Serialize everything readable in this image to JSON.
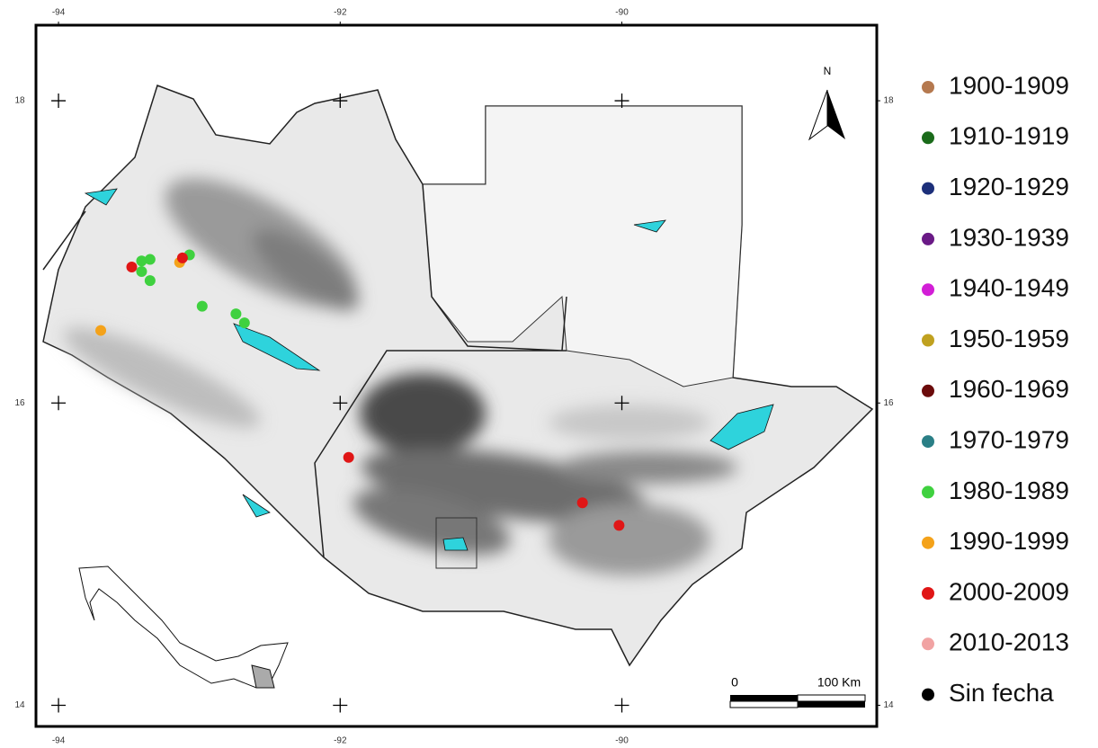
{
  "map": {
    "lon_ticks": [
      {
        "value": -94,
        "label": "-94"
      },
      {
        "value": -92,
        "label": "-92"
      },
      {
        "value": -90,
        "label": "-90"
      }
    ],
    "lat_ticks": [
      18,
      16,
      14
    ],
    "xlim": [
      -94.16,
      -88.19
    ],
    "ylim": [
      13.86,
      18.5
    ],
    "north_label": "N",
    "scale_bar": {
      "start_label": "0",
      "end_label": "100 Km"
    },
    "legend": [
      {
        "name": "1900-1909",
        "color": "#b5794f"
      },
      {
        "name": "1910-1919",
        "color": "#1a6b1a"
      },
      {
        "name": "1920-1929",
        "color": "#1c2f7a"
      },
      {
        "name": "1930-1939",
        "color": "#6a1a86"
      },
      {
        "name": "1940-1949",
        "color": "#d21ed6"
      },
      {
        "name": "1950-1959",
        "color": "#c0a11f"
      },
      {
        "name": "1960-1969",
        "color": "#6b0b0b"
      },
      {
        "name": "1970-1979",
        "color": "#2a7f86"
      },
      {
        "name": "1980-1989",
        "color": "#3fd13f"
      },
      {
        "name": "1990-1999",
        "color": "#f4a21a"
      },
      {
        "name": "2000-2009",
        "color": "#e01616"
      },
      {
        "name": "2010-2013",
        "color": "#f1a3a3"
      },
      {
        "name": "Sin fecha",
        "color": "#000000"
      }
    ],
    "points": [
      {
        "lon": -93.41,
        "lat": 16.94,
        "period": 8
      },
      {
        "lon": -93.35,
        "lat": 16.95,
        "period": 8
      },
      {
        "lon": -93.41,
        "lat": 16.87,
        "period": 8
      },
      {
        "lon": -93.35,
        "lat": 16.81,
        "period": 8
      },
      {
        "lon": -92.98,
        "lat": 16.64,
        "period": 8
      },
      {
        "lon": -92.74,
        "lat": 16.59,
        "period": 8
      },
      {
        "lon": -92.68,
        "lat": 16.53,
        "period": 8
      },
      {
        "lon": -93.07,
        "lat": 16.98,
        "period": 8
      },
      {
        "lon": -93.7,
        "lat": 16.48,
        "period": 9
      },
      {
        "lon": -93.14,
        "lat": 16.93,
        "period": 9
      },
      {
        "lon": -93.48,
        "lat": 16.9,
        "period": 10
      },
      {
        "lon": -93.12,
        "lat": 16.96,
        "period": 10
      },
      {
        "lon": -91.94,
        "lat": 15.64,
        "period": 10
      },
      {
        "lon": -90.28,
        "lat": 15.34,
        "period": 10
      },
      {
        "lon": -90.02,
        "lat": 15.19,
        "period": 10
      }
    ]
  }
}
